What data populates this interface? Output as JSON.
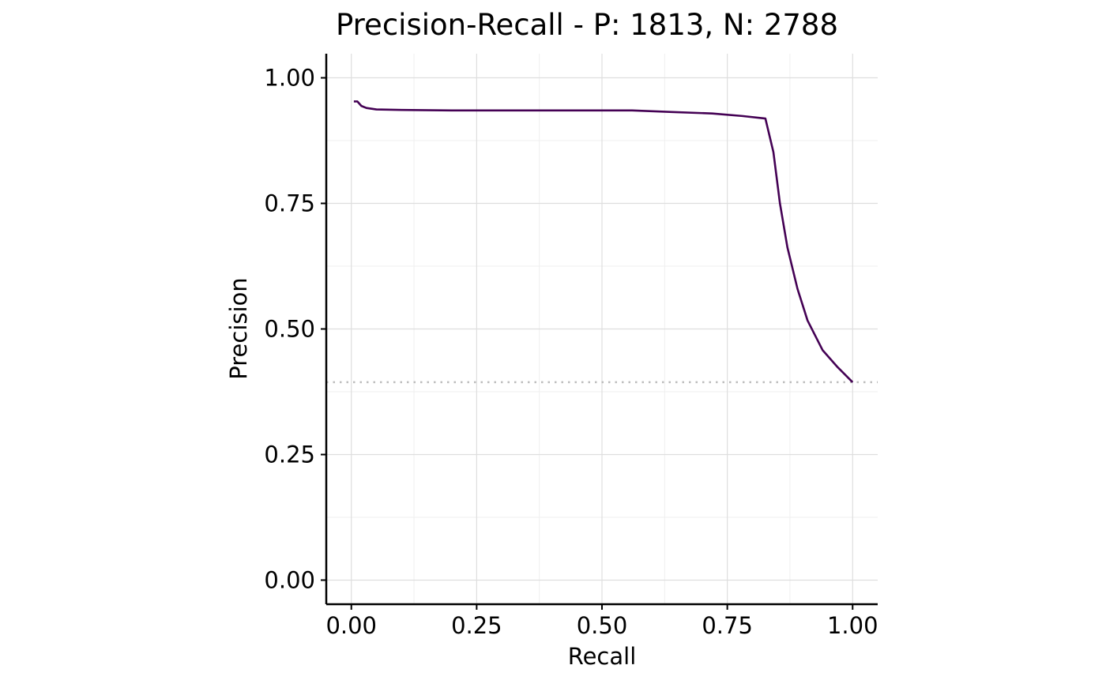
{
  "chart_data": {
    "type": "line",
    "title": "Precision-Recall - P: 1813, N: 2788",
    "xlabel": "Recall",
    "ylabel": "Precision",
    "xlim": [
      -0.05,
      1.05
    ],
    "ylim": [
      -0.048,
      1.048
    ],
    "x_ticks": [
      0.0,
      0.25,
      0.5,
      0.75,
      1.0
    ],
    "x_tick_labels": [
      "0.00",
      "0.25",
      "0.50",
      "0.75",
      "1.00"
    ],
    "y_ticks": [
      0.0,
      0.25,
      0.5,
      0.75,
      1.0
    ],
    "y_tick_labels": [
      "0.00",
      "0.25",
      "0.50",
      "0.75",
      "1.00"
    ],
    "grid": true,
    "legend": "none",
    "colors": {
      "curve": "#440154",
      "baseline": "#bdbdbd",
      "grid_major": "#dedede",
      "grid_minor": "#efefef",
      "axis": "#000000"
    },
    "baseline": {
      "y": 0.394,
      "style": "dotted"
    },
    "series": [
      {
        "x": [
          0.005,
          0.012,
          0.02,
          0.03,
          0.05,
          0.1,
          0.2,
          0.35,
          0.45,
          0.56,
          0.64,
          0.72,
          0.78,
          0.826,
          0.842,
          0.855,
          0.87,
          0.89,
          0.91,
          0.94,
          0.97,
          1.0
        ],
        "y": [
          0.953,
          0.953,
          0.944,
          0.94,
          0.937,
          0.936,
          0.935,
          0.935,
          0.935,
          0.935,
          0.932,
          0.929,
          0.924,
          0.919,
          0.852,
          0.75,
          0.662,
          0.58,
          0.517,
          0.458,
          0.424,
          0.394
        ]
      }
    ]
  }
}
